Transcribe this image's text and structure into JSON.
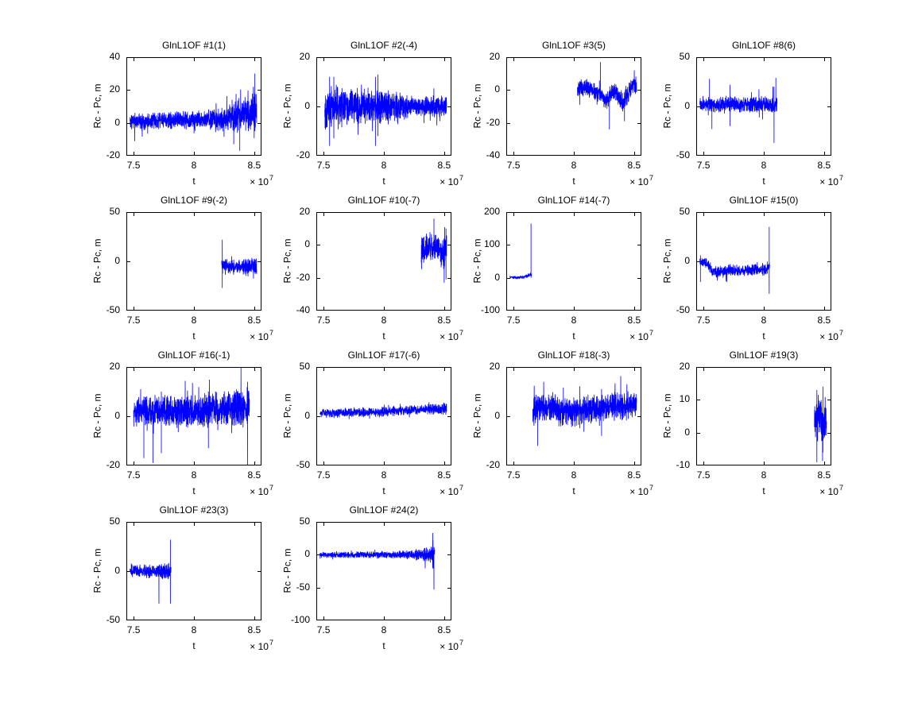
{
  "figure": {
    "background": "#ffffff",
    "line_color": "#0000ff",
    "axis_color": "#000000",
    "text_color": "#000000"
  },
  "axis_common": {
    "xlabel": "t",
    "ylabel": "Rc - Pc, m",
    "exponent_prefix": "× 10",
    "exponent_value": "7",
    "xlim": [
      7.44,
      8.56
    ],
    "xticks": [
      7.5,
      8,
      8.5
    ],
    "xtick_labels": [
      "7.5",
      "8",
      "8.5"
    ],
    "grid": false,
    "legend": "none"
  },
  "chart_data": [
    {
      "type": "line",
      "title": "GlnL1OF #1(1)",
      "ylim": [
        -20,
        40
      ],
      "yticks": [
        -20,
        0,
        20,
        40
      ],
      "x_range": [
        7.47,
        8.52
      ],
      "baseline": [
        [
          7.47,
          1
        ],
        [
          8.1,
          2
        ],
        [
          8.3,
          3
        ],
        [
          8.52,
          7
        ]
      ],
      "amplitude": [
        [
          7.47,
          5.5
        ],
        [
          8.1,
          6
        ],
        [
          8.2,
          8
        ],
        [
          8.35,
          11
        ],
        [
          8.52,
          13
        ]
      ],
      "spikes": [
        [
          8.33,
          -13,
          6
        ],
        [
          8.38,
          -17,
          8
        ],
        [
          8.505,
          -5,
          30
        ]
      ],
      "seed": 11
    },
    {
      "type": "line",
      "title": "GlnL1OF #2(-4)",
      "ylim": [
        -20,
        20
      ],
      "yticks": [
        -20,
        0,
        20
      ],
      "x_range": [
        7.51,
        8.52
      ],
      "baseline": [
        [
          7.51,
          0
        ],
        [
          8.52,
          0
        ]
      ],
      "amplitude": [
        [
          7.51,
          10
        ],
        [
          7.7,
          8
        ],
        [
          8.0,
          8
        ],
        [
          8.2,
          5
        ],
        [
          8.52,
          4.5
        ]
      ],
      "spikes": [
        [
          7.55,
          -16,
          12
        ],
        [
          7.585,
          -13,
          12
        ],
        [
          7.93,
          -16,
          12
        ],
        [
          7.95,
          -12,
          13
        ]
      ],
      "seed": 22
    },
    {
      "type": "line",
      "title": "GlnL1OF #3(5)",
      "ylim": [
        -40,
        20
      ],
      "yticks": [
        -40,
        -20,
        0,
        20
      ],
      "x_range": [
        8.03,
        8.52
      ],
      "baseline": [
        [
          8.03,
          0
        ],
        [
          8.1,
          2
        ],
        [
          8.17,
          -1
        ],
        [
          8.23,
          -3
        ],
        [
          8.27,
          -7
        ],
        [
          8.31,
          -2
        ],
        [
          8.35,
          -1
        ],
        [
          8.4,
          -8
        ],
        [
          8.44,
          -4
        ],
        [
          8.48,
          2
        ],
        [
          8.52,
          3
        ]
      ],
      "amplitude": [
        [
          8.03,
          6
        ],
        [
          8.52,
          6.5
        ]
      ],
      "spikes": [
        [
          8.22,
          8,
          17
        ],
        [
          8.295,
          -24,
          -6
        ],
        [
          8.42,
          -19,
          -2
        ]
      ],
      "seed": 33
    },
    {
      "type": "line",
      "title": "GlnL1OF #8(6)",
      "ylim": [
        -50,
        50
      ],
      "yticks": [
        -50,
        0,
        50
      ],
      "x_range": [
        7.47,
        8.11
      ],
      "baseline": [
        [
          7.47,
          2
        ],
        [
          8.11,
          2
        ]
      ],
      "amplitude": [
        [
          7.47,
          8
        ],
        [
          7.8,
          9
        ],
        [
          8.11,
          10
        ]
      ],
      "spikes": [
        [
          7.55,
          10,
          28
        ],
        [
          7.57,
          -23,
          5
        ],
        [
          7.72,
          -20,
          22
        ],
        [
          8.085,
          -37,
          20
        ],
        [
          8.1,
          -5,
          29
        ]
      ],
      "seed": 44
    },
    {
      "type": "line",
      "title": "GlnL1OF #9(-2)",
      "ylim": [
        -50,
        50
      ],
      "yticks": [
        -50,
        0,
        50
      ],
      "x_range": [
        8.23,
        8.52
      ],
      "baseline": [
        [
          8.23,
          -2
        ],
        [
          8.3,
          -6
        ],
        [
          8.45,
          -5
        ],
        [
          8.52,
          -5
        ]
      ],
      "amplitude": [
        [
          8.23,
          8
        ],
        [
          8.52,
          9
        ]
      ],
      "spikes": [
        [
          8.235,
          -27,
          22
        ]
      ],
      "seed": 55
    },
    {
      "type": "line",
      "title": "GlnL1OF #10(-7)",
      "ylim": [
        -40,
        20
      ],
      "yticks": [
        -40,
        -20,
        0,
        20
      ],
      "x_range": [
        8.31,
        8.52
      ],
      "baseline": [
        [
          8.31,
          -3
        ],
        [
          8.38,
          -1
        ],
        [
          8.43,
          -2
        ],
        [
          8.47,
          -5
        ],
        [
          8.5,
          -5
        ],
        [
          8.52,
          0
        ]
      ],
      "amplitude": [
        [
          8.31,
          9
        ],
        [
          8.52,
          10
        ]
      ],
      "spikes": [
        [
          8.415,
          8,
          16
        ],
        [
          8.5,
          -23,
          -6
        ],
        [
          8.515,
          -21,
          10
        ]
      ],
      "seed": 66
    },
    {
      "type": "line",
      "title": "GlnL1OF #14(-7)",
      "ylim": [
        -100,
        200
      ],
      "yticks": [
        -100,
        0,
        100,
        200
      ],
      "x_range": [
        7.47,
        7.65
      ],
      "baseline": [
        [
          7.47,
          3
        ],
        [
          7.53,
          0
        ],
        [
          7.58,
          2
        ],
        [
          7.62,
          6
        ],
        [
          7.65,
          10
        ]
      ],
      "amplitude": [
        [
          7.47,
          5
        ],
        [
          7.6,
          6
        ],
        [
          7.65,
          8
        ]
      ],
      "spikes": [
        [
          7.645,
          0,
          165
        ]
      ],
      "seed": 77
    },
    {
      "type": "line",
      "title": "GlnL1OF #15(0)",
      "ylim": [
        -50,
        50
      ],
      "yticks": [
        -50,
        0,
        50
      ],
      "x_range": [
        7.47,
        8.05
      ],
      "baseline": [
        [
          7.47,
          0
        ],
        [
          7.54,
          -3
        ],
        [
          7.58,
          -11
        ],
        [
          7.75,
          -9
        ],
        [
          7.9,
          -9
        ],
        [
          8.02,
          -8
        ],
        [
          8.05,
          -4
        ]
      ],
      "amplitude": [
        [
          7.47,
          5
        ],
        [
          7.58,
          7
        ],
        [
          8.05,
          7
        ]
      ],
      "spikes": [
        [
          7.475,
          -21,
          6
        ],
        [
          8.045,
          -33,
          35
        ]
      ],
      "seed": 88
    },
    {
      "type": "line",
      "title": "GlnL1OF #16(-1)",
      "ylim": [
        -20,
        20
      ],
      "yticks": [
        -20,
        0,
        20
      ],
      "x_range": [
        7.5,
        8.46
      ],
      "baseline": [
        [
          7.5,
          2
        ],
        [
          8.0,
          2
        ],
        [
          8.46,
          4
        ]
      ],
      "amplitude": [
        [
          7.5,
          7
        ],
        [
          8.1,
          7.5
        ],
        [
          8.46,
          9
        ]
      ],
      "spikes": [
        [
          7.585,
          -17,
          8
        ],
        [
          7.66,
          -19,
          6
        ],
        [
          7.73,
          -15,
          10
        ],
        [
          8.12,
          -13,
          10
        ],
        [
          8.39,
          4,
          20
        ],
        [
          8.445,
          -20,
          14
        ]
      ],
      "seed": 99
    },
    {
      "type": "line",
      "title": "GlnL1OF #17(-6)",
      "ylim": [
        -50,
        50
      ],
      "yticks": [
        -50,
        0,
        50
      ],
      "x_range": [
        7.47,
        8.52
      ],
      "baseline": [
        [
          7.47,
          3
        ],
        [
          7.9,
          4
        ],
        [
          8.2,
          6
        ],
        [
          8.52,
          8
        ]
      ],
      "amplitude": [
        [
          7.47,
          5
        ],
        [
          8.3,
          5.5
        ],
        [
          8.52,
          7
        ]
      ],
      "spikes": [],
      "seed": 110
    },
    {
      "type": "line",
      "title": "GlnL1OF #18(-3)",
      "ylim": [
        -20,
        20
      ],
      "yticks": [
        -20,
        0,
        20
      ],
      "x_range": [
        7.66,
        8.52
      ],
      "baseline": [
        [
          7.66,
          3
        ],
        [
          7.78,
          4
        ],
        [
          7.9,
          2
        ],
        [
          8.05,
          2
        ],
        [
          8.18,
          3
        ],
        [
          8.3,
          4
        ],
        [
          8.42,
          4
        ],
        [
          8.52,
          5
        ]
      ],
      "amplitude": [
        [
          7.66,
          7
        ],
        [
          8.52,
          6
        ]
      ],
      "spikes": [
        [
          7.7,
          -12,
          8
        ],
        [
          7.75,
          2,
          14
        ],
        [
          8.23,
          -8,
          11
        ]
      ],
      "seed": 121
    },
    {
      "type": "line",
      "title": "GlnL1OF #19(3)",
      "ylim": [
        -10,
        20
      ],
      "yticks": [
        -10,
        0,
        10,
        20
      ],
      "x_range": [
        8.42,
        8.52
      ],
      "baseline": [
        [
          8.42,
          3
        ],
        [
          8.46,
          5
        ],
        [
          8.49,
          3
        ],
        [
          8.52,
          5
        ]
      ],
      "amplitude": [
        [
          8.42,
          7
        ],
        [
          8.52,
          7
        ]
      ],
      "spikes": [
        [
          8.44,
          -9,
          13
        ],
        [
          8.49,
          -6,
          14
        ]
      ],
      "seed": 132
    },
    {
      "type": "line",
      "title": "GlnL1OF #23(3)",
      "ylim": [
        -50,
        50
      ],
      "yticks": [
        -50,
        0,
        50
      ],
      "x_range": [
        7.47,
        7.81
      ],
      "baseline": [
        [
          7.47,
          0
        ],
        [
          7.81,
          0
        ]
      ],
      "amplitude": [
        [
          7.47,
          7
        ],
        [
          7.81,
          9
        ]
      ],
      "spikes": [
        [
          7.71,
          -33,
          6
        ],
        [
          7.805,
          -33,
          32
        ]
      ],
      "seed": 143
    },
    {
      "type": "line",
      "title": "GlnL1OF #24(2)",
      "ylim": [
        -100,
        50
      ],
      "yticks": [
        -100,
        -50,
        0,
        50
      ],
      "x_range": [
        7.47,
        8.42
      ],
      "baseline": [
        [
          7.47,
          0
        ],
        [
          8.42,
          0
        ]
      ],
      "amplitude": [
        [
          7.47,
          5
        ],
        [
          8.1,
          6
        ],
        [
          8.3,
          10
        ],
        [
          8.38,
          14
        ],
        [
          8.42,
          16
        ]
      ],
      "spikes": [
        [
          8.405,
          -20,
          33
        ],
        [
          8.415,
          -53,
          10
        ]
      ],
      "seed": 154
    }
  ]
}
